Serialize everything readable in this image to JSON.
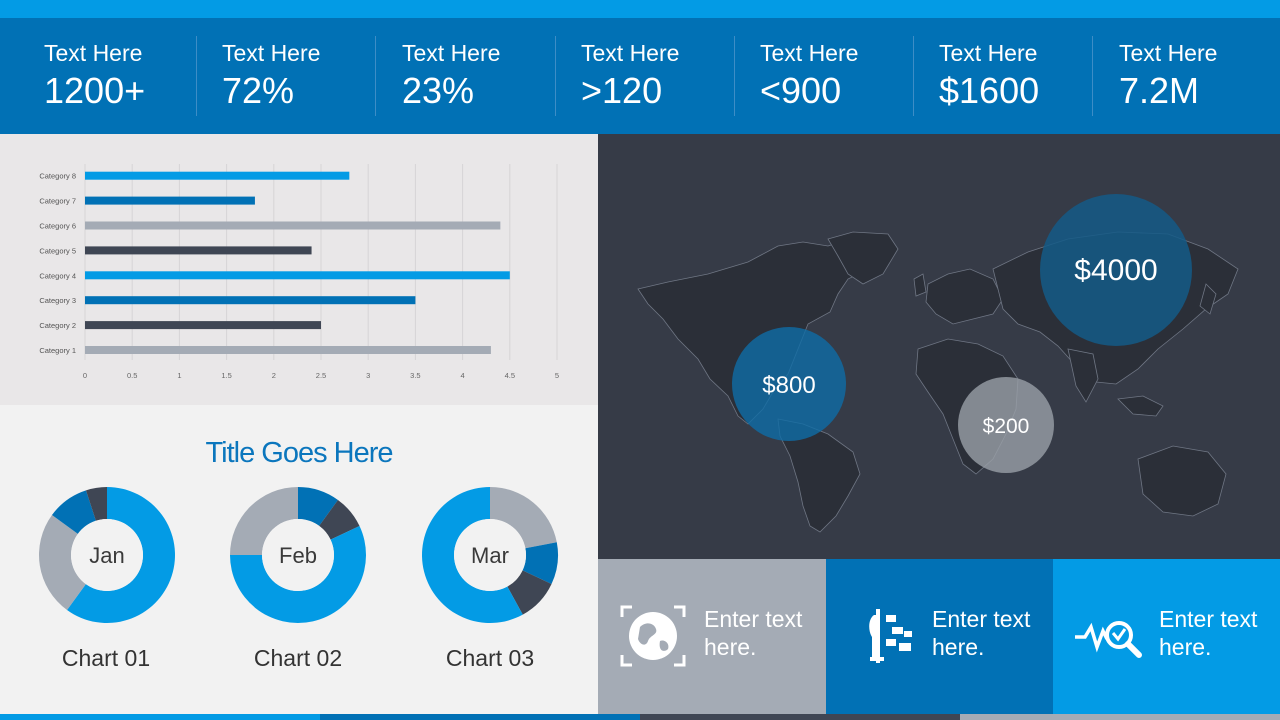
{
  "kpis": [
    {
      "label": "Text Here",
      "value": "1200+"
    },
    {
      "label": "Text Here",
      "value": "72%"
    },
    {
      "label": "Text Here",
      "value": "23%"
    },
    {
      "label": "Text Here",
      "value": ">120"
    },
    {
      "label": "Text Here",
      "value": "<900"
    },
    {
      "label": "Text Here",
      "value": "$1600"
    },
    {
      "label": "Text Here",
      "value": "7.2M"
    }
  ],
  "donut_section": {
    "title": "Title Goes Here"
  },
  "map": {
    "bubbles": [
      {
        "label": "$4000"
      },
      {
        "label": "$800"
      },
      {
        "label": "$200"
      }
    ]
  },
  "tiles": [
    {
      "line1": "Enter text",
      "line2": "here.",
      "icon": "globe-icon",
      "color": "#a4abb5"
    },
    {
      "line1": "Enter text",
      "line2": "here.",
      "icon": "person-messages-icon",
      "color": "#0171b5"
    },
    {
      "line1": "Enter text",
      "line2": "here.",
      "icon": "pulse-search-icon",
      "color": "#039be5"
    }
  ],
  "colors": {
    "accent": "#039be5",
    "primary": "#0171b5",
    "dark": "#3f4654",
    "gray": "#a4abb5"
  },
  "chart_data": [
    {
      "type": "bar",
      "orientation": "horizontal",
      "categories": [
        "Category 1",
        "Category 2",
        "Category 3",
        "Category 4",
        "Category 5",
        "Category 6",
        "Category 7",
        "Category 8"
      ],
      "values": [
        4.3,
        2.5,
        3.5,
        4.5,
        2.4,
        4.4,
        1.8,
        2.8
      ],
      "bar_colors": [
        "#a4abb5",
        "#3f4654",
        "#0171b5",
        "#039be5",
        "#3f4654",
        "#a4abb5",
        "#0171b5",
        "#039be5"
      ],
      "xlim": [
        0,
        5
      ],
      "xticks": [
        "0",
        "0.5",
        "1",
        "1.5",
        "2",
        "2.5",
        "3",
        "3.5",
        "4",
        "4.5",
        "5"
      ],
      "grid": true
    },
    {
      "type": "pie",
      "hole": true,
      "center_label": "Jan",
      "caption": "Chart 01",
      "values": [
        60,
        25,
        10,
        5
      ],
      "colors": [
        "#039be5",
        "#a4abb5",
        "#0171b5",
        "#3f4654"
      ]
    },
    {
      "type": "pie",
      "hole": true,
      "center_label": "Feb",
      "caption": "Chart 02",
      "values": [
        10,
        8,
        57,
        25
      ],
      "colors": [
        "#0171b5",
        "#3f4654",
        "#039be5",
        "#a4abb5"
      ]
    },
    {
      "type": "pie",
      "hole": true,
      "center_label": "Mar",
      "caption": "Chart 03",
      "values": [
        22,
        10,
        10,
        58
      ],
      "colors": [
        "#a4abb5",
        "#0171b5",
        "#3f4654",
        "#039be5"
      ]
    }
  ]
}
